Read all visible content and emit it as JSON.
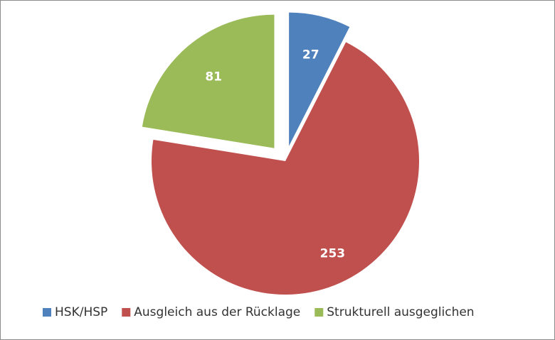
{
  "chart_data": {
    "type": "pie",
    "categories": [
      "HSK/HSP",
      "Ausgleich aus der Rücklage",
      "Strukturell ausgeglichen"
    ],
    "values": [
      27,
      253,
      81
    ],
    "colors": [
      "#4f81bd",
      "#c0504d",
      "#9bbb59"
    ],
    "legend": "bottom"
  }
}
